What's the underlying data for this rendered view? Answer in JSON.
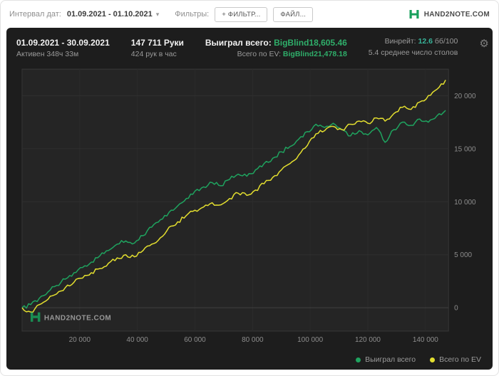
{
  "toolbar": {
    "date_label": "Интервал дат:",
    "date_value": "01.09.2021 - 01.10.2021",
    "filters_label": "Фильтры:",
    "filter_button": "+ ФИЛЬТР...",
    "file_button": "ФАЙЛ...",
    "brand": "HAND2NOTE.COM"
  },
  "panel": {
    "period": "01.09.2021 - 30.09.2021",
    "active_time": "Активен 348ч 33м",
    "hands": "147 711 Руки",
    "hands_rate": "424 рук в час",
    "won_label": "Выиграл всего:",
    "won_value": "BigBlind18,605.46",
    "ev_label": "Всего по EV:",
    "ev_value": "BigBlind21,478.18",
    "winrate_label": "Винрейт:",
    "winrate_value": "12.6",
    "winrate_units": "бб/100",
    "tables_avg": "5.4 среднее число столов"
  },
  "colors": {
    "brand_green": "#18a05c",
    "value_green": "#2fae6a",
    "winrate_teal": "#38b49a",
    "won_line": "#1fa35f",
    "ev_line": "#e3de2f"
  },
  "chart_data": {
    "type": "line",
    "title": "",
    "xlabel": "",
    "ylabel": "",
    "xlim": [
      0,
      148000
    ],
    "ylim": [
      -2200,
      22500
    ],
    "grid": true,
    "legend_position": "bottom-right",
    "watermark": "HAND2NOTE.COM",
    "x_tick_values": [
      20000,
      40000,
      60000,
      80000,
      100000,
      120000,
      140000
    ],
    "x_ticks": [
      "20 000",
      "40 000",
      "60 000",
      "80 000",
      "100 000",
      "120 000",
      "140 000"
    ],
    "y_tick_values": [
      0,
      5000,
      10000,
      15000,
      20000
    ],
    "y_ticks": [
      "0",
      "5 000",
      "10 000",
      "15 000",
      "20 000"
    ],
    "x": [
      0,
      3000,
      6000,
      9000,
      12000,
      15000,
      18000,
      21000,
      24000,
      27000,
      30000,
      33000,
      36000,
      39000,
      42000,
      45000,
      48000,
      51000,
      54000,
      57000,
      60000,
      63000,
      66000,
      69000,
      72000,
      75000,
      78000,
      81000,
      84000,
      87000,
      90000,
      93000,
      96000,
      99000,
      102000,
      105000,
      108000,
      111000,
      114000,
      117000,
      120000,
      123000,
      126000,
      129000,
      132000,
      135000,
      138000,
      141000,
      144000,
      147000
    ],
    "series": [
      {
        "name": "Выиграл всего",
        "color": "#1fa35f",
        "final_value": 18605.46,
        "values": [
          0,
          300,
          900,
          1500,
          2100,
          2700,
          3300,
          3800,
          4300,
          4900,
          5400,
          6000,
          6300,
          6100,
          6800,
          7600,
          8300,
          9000,
          9600,
          10300,
          11000,
          11400,
          11800,
          11500,
          12100,
          12600,
          12400,
          13000,
          13600,
          14100,
          14700,
          15200,
          15900,
          16600,
          17300,
          17000,
          17400,
          16800,
          16200,
          16700,
          16300,
          17000,
          15600,
          16800,
          17500,
          17200,
          17800,
          17500,
          18100,
          18605
        ]
      },
      {
        "name": "Всего по EV",
        "color": "#e3de2f",
        "final_value": 21478.18,
        "values": [
          0,
          -400,
          300,
          800,
          1300,
          1900,
          2400,
          2800,
          3300,
          3700,
          4200,
          4700,
          5000,
          4800,
          5400,
          6000,
          6600,
          7600,
          8100,
          8700,
          9200,
          9500,
          9900,
          9700,
          10300,
          10800,
          10600,
          11100,
          11700,
          12300,
          13000,
          13600,
          14400,
          15300,
          16400,
          16700,
          17100,
          16800,
          17300,
          17600,
          17400,
          17900,
          17600,
          18300,
          18900,
          18700,
          19400,
          20000,
          20600,
          21478
        ]
      }
    ],
    "legend": [
      {
        "label": "Выиграл всего",
        "color": "#1fa35f"
      },
      {
        "label": "Всего по EV",
        "color": "#e3de2f"
      }
    ]
  }
}
